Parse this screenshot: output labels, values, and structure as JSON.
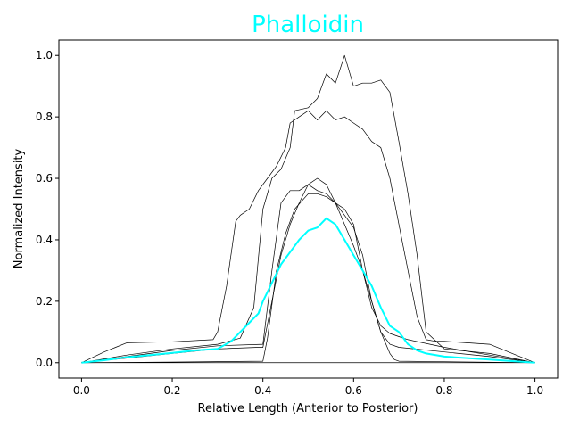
{
  "chart_data": {
    "type": "line",
    "title": "Phalloidin",
    "title_color": "#00ffff",
    "xlabel": "Relative Length (Anterior to Posterior)",
    "ylabel": "Normalized Intensity",
    "xlim": [
      -0.05,
      1.05
    ],
    "ylim": [
      -0.05,
      1.05
    ],
    "xticks": [
      0.0,
      0.2,
      0.4,
      0.6,
      0.8,
      1.0
    ],
    "xtick_labels": [
      "0.0",
      "0.2",
      "0.4",
      "0.6",
      "0.8",
      "1.0"
    ],
    "yticks": [
      0.0,
      0.2,
      0.4,
      0.6,
      0.8,
      1.0
    ],
    "ytick_labels": [
      "0.0",
      "0.2",
      "0.4",
      "0.6",
      "0.8",
      "1.0"
    ],
    "grid": false,
    "series": [
      {
        "color": "#000000",
        "x": [
          0.0,
          0.05,
          0.1,
          0.2,
          0.29,
          0.3,
          0.32,
          0.34,
          0.35,
          0.37,
          0.39,
          0.41,
          0.43,
          0.45,
          0.46,
          0.48,
          0.5,
          0.52,
          0.54,
          0.56,
          0.58,
          0.6,
          0.62,
          0.64,
          0.66,
          0.68,
          0.7,
          0.72,
          0.74,
          0.76,
          0.78,
          0.8,
          0.9,
          1.0
        ],
        "y": [
          0.0,
          0.035,
          0.065,
          0.068,
          0.075,
          0.1,
          0.25,
          0.46,
          0.48,
          0.5,
          0.56,
          0.6,
          0.64,
          0.7,
          0.78,
          0.8,
          0.82,
          0.79,
          0.82,
          0.79,
          0.8,
          0.78,
          0.76,
          0.72,
          0.7,
          0.6,
          0.45,
          0.3,
          0.15,
          0.075,
          0.07,
          0.07,
          0.06,
          0.0
        ]
      },
      {
        "color": "#000000",
        "x": [
          0.0,
          0.1,
          0.2,
          0.3,
          0.35,
          0.38,
          0.4,
          0.42,
          0.44,
          0.46,
          0.47,
          0.5,
          0.52,
          0.54,
          0.56,
          0.58,
          0.6,
          0.62,
          0.64,
          0.66,
          0.68,
          0.7,
          0.72,
          0.74,
          0.76,
          0.8,
          0.9,
          1.0
        ],
        "y": [
          0.0,
          0.025,
          0.045,
          0.06,
          0.08,
          0.18,
          0.5,
          0.6,
          0.63,
          0.7,
          0.82,
          0.83,
          0.86,
          0.94,
          0.91,
          1.0,
          0.9,
          0.91,
          0.91,
          0.92,
          0.88,
          0.72,
          0.55,
          0.35,
          0.1,
          0.045,
          0.03,
          0.0
        ]
      },
      {
        "color": "#000000",
        "x": [
          0.0,
          0.1,
          0.2,
          0.3,
          0.4,
          0.42,
          0.44,
          0.46,
          0.48,
          0.5,
          0.52,
          0.54,
          0.56,
          0.58,
          0.6,
          0.62,
          0.64,
          0.66,
          0.68,
          0.7,
          0.72,
          0.8,
          0.9,
          1.0
        ],
        "y": [
          0.0,
          0.02,
          0.04,
          0.055,
          0.06,
          0.3,
          0.52,
          0.56,
          0.56,
          0.58,
          0.56,
          0.55,
          0.52,
          0.5,
          0.45,
          0.3,
          0.18,
          0.12,
          0.095,
          0.085,
          0.075,
          0.05,
          0.025,
          0.0
        ]
      },
      {
        "color": "#000000",
        "x": [
          0.0,
          0.1,
          0.2,
          0.3,
          0.39,
          0.4,
          0.42,
          0.44,
          0.46,
          0.48,
          0.5,
          0.52,
          0.54,
          0.56,
          0.58,
          0.6,
          0.62,
          0.64,
          0.66,
          0.68,
          0.7,
          0.8,
          0.9,
          1.0
        ],
        "y": [
          0.0,
          0.015,
          0.03,
          0.045,
          0.05,
          0.05,
          0.2,
          0.35,
          0.45,
          0.52,
          0.58,
          0.6,
          0.58,
          0.52,
          0.48,
          0.44,
          0.35,
          0.2,
          0.1,
          0.06,
          0.05,
          0.035,
          0.02,
          0.0
        ]
      },
      {
        "color": "#000000",
        "x": [
          0.0,
          0.2,
          0.4,
          0.41,
          0.43,
          0.45,
          0.47,
          0.5,
          0.52,
          0.54,
          0.56,
          0.58,
          0.6,
          0.62,
          0.64,
          0.66,
          0.68,
          0.69,
          0.7,
          0.8,
          1.0
        ],
        "y": [
          0.0,
          0.002,
          0.005,
          0.08,
          0.3,
          0.42,
          0.5,
          0.55,
          0.55,
          0.54,
          0.52,
          0.45,
          0.38,
          0.3,
          0.2,
          0.1,
          0.03,
          0.01,
          0.005,
          0.003,
          0.0
        ]
      },
      {
        "color": "#00ffff",
        "linewidth": 2,
        "x": [
          0.0,
          0.05,
          0.1,
          0.15,
          0.2,
          0.25,
          0.3,
          0.33,
          0.35,
          0.37,
          0.39,
          0.4,
          0.42,
          0.44,
          0.46,
          0.48,
          0.5,
          0.52,
          0.54,
          0.56,
          0.58,
          0.6,
          0.62,
          0.64,
          0.66,
          0.68,
          0.7,
          0.72,
          0.74,
          0.76,
          0.8,
          0.9,
          1.0
        ],
        "y": [
          0.0,
          0.008,
          0.018,
          0.025,
          0.032,
          0.04,
          0.045,
          0.07,
          0.1,
          0.13,
          0.16,
          0.2,
          0.26,
          0.32,
          0.36,
          0.4,
          0.43,
          0.44,
          0.47,
          0.45,
          0.4,
          0.35,
          0.3,
          0.25,
          0.18,
          0.12,
          0.1,
          0.06,
          0.04,
          0.03,
          0.02,
          0.01,
          0.0
        ]
      }
    ]
  }
}
